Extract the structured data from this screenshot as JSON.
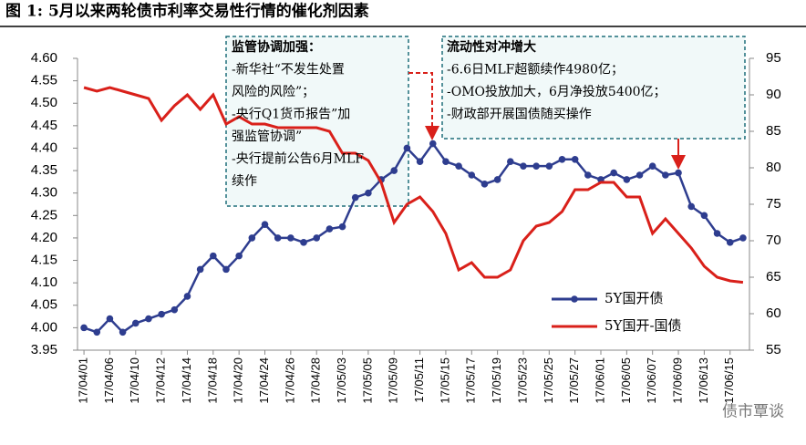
{
  "chart_data": {
    "type": "line",
    "title": "图 1:  5月以来两轮债市利率交易性行情的催化剂因素",
    "categories": [
      "17/04/01",
      null,
      "17/04/06",
      null,
      "17/04/10",
      null,
      "17/04/12",
      null,
      "17/04/14",
      null,
      "17/04/18",
      null,
      "17/04/20",
      null,
      "17/04/24",
      null,
      "17/04/26",
      null,
      "17/04/28",
      null,
      "17/05/03",
      null,
      "17/05/05",
      null,
      "17/05/09",
      null,
      "17/05/11",
      null,
      "17/05/15",
      null,
      "17/05/17",
      null,
      "17/05/19",
      null,
      "17/05/23",
      null,
      "17/05/25",
      null,
      "17/05/27",
      null,
      "17/06/01",
      null,
      "17/06/05",
      null,
      "17/06/07",
      null,
      "17/06/09",
      null,
      "17/06/13",
      null,
      "17/06/15",
      null
    ],
    "series": [
      {
        "name": "5Y国开债",
        "color": "#2e3d8f",
        "marker": true,
        "values": [
          4.0,
          3.99,
          4.02,
          3.99,
          4.01,
          4.02,
          4.03,
          4.04,
          4.07,
          4.13,
          4.16,
          4.13,
          4.16,
          4.2,
          4.23,
          4.2,
          4.2,
          4.19,
          4.2,
          4.22,
          4.225,
          4.29,
          4.3,
          4.33,
          4.35,
          4.4,
          4.37,
          4.41,
          4.37,
          4.36,
          4.34,
          4.32,
          4.33,
          4.37,
          4.36,
          4.36,
          4.36,
          4.375,
          4.375,
          4.34,
          4.33,
          4.345,
          4.33,
          4.34,
          4.36,
          4.34,
          4.345,
          4.27,
          4.25,
          4.21,
          4.19,
          4.2
        ]
      },
      {
        "name": "5Y国开-国债",
        "color": "#d9201a",
        "marker": false,
        "axis": "y2",
        "values": [
          91,
          90.5,
          91,
          90.5,
          90,
          89.5,
          86.5,
          88.5,
          90,
          88,
          90,
          86,
          87,
          86,
          86,
          85.5,
          85.5,
          85.5,
          85.5,
          85,
          82,
          82,
          81,
          78,
          72.5,
          75,
          76,
          74,
          71,
          66,
          67,
          65,
          65,
          66,
          70,
          72,
          72.5,
          74,
          77,
          77,
          78,
          78,
          76,
          76,
          71,
          73,
          71,
          69,
          66.5,
          65,
          64.5,
          64.3
        ]
      }
    ],
    "ylim": [
      3.95,
      4.6
    ],
    "yticks": [
      {
        "value": 3.95,
        "label": "3.95"
      },
      {
        "value": 4.0,
        "label": "4.00"
      },
      {
        "value": 4.05,
        "label": "4.05"
      },
      {
        "value": 4.1,
        "label": "4.10"
      },
      {
        "value": 4.15,
        "label": "4.15"
      },
      {
        "value": 4.2,
        "label": "4.20"
      },
      {
        "value": 4.25,
        "label": "4.25"
      },
      {
        "value": 4.3,
        "label": "4.30"
      },
      {
        "value": 4.35,
        "label": "4.35"
      },
      {
        "value": 4.4,
        "label": "4.40"
      },
      {
        "value": 4.45,
        "label": "4.45"
      },
      {
        "value": 4.5,
        "label": "4.50"
      },
      {
        "value": 4.55,
        "label": "4.55"
      },
      {
        "value": 4.6,
        "label": "4.60"
      }
    ],
    "y2lim": [
      55,
      95
    ],
    "y2ticks": [
      55,
      60,
      65,
      70,
      75,
      80,
      85,
      90,
      95
    ],
    "legend": "lower right",
    "annotations": [
      {
        "lines": [
          "监管协调加强：",
          "-新华社“不发生处置",
          "风险的风险”；",
          "-央行Q1货币报告”加",
          "强监管协调”",
          "-央行提前公告6月MLF",
          "续作"
        ]
      },
      {
        "lines": [
          "流动性对冲增大",
          "-6.6日MLF超额续作4980亿；",
          "-OMO投放加大，6月净投放5400亿；",
          "-财政部开展国债随买操作"
        ]
      }
    ],
    "watermark": "债市覃谈"
  }
}
